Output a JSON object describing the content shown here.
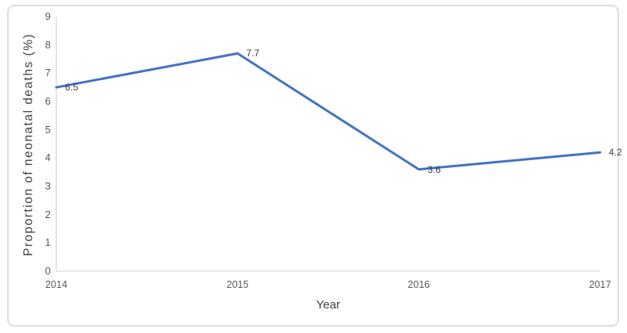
{
  "chart_data": {
    "type": "line",
    "title": "",
    "xlabel": "Year",
    "ylabel": "Proportion of neonatal deaths (%)",
    "categories": [
      "2014",
      "2015",
      "2016",
      "2017"
    ],
    "values": [
      6.5,
      7.7,
      3.6,
      4.2
    ],
    "data_labels": [
      "6.5",
      "7.7",
      "3.6",
      "4.2"
    ],
    "ylim": [
      0,
      9
    ],
    "yticks": [
      0,
      1,
      2,
      3,
      4,
      5,
      6,
      7,
      8,
      9
    ],
    "grid": false,
    "legend": false,
    "colors": {
      "line": "#4472C4",
      "axis": "#D9D9D9",
      "tick_text": "#595959",
      "title_text": "#404040",
      "data_label_text": "#404040",
      "card_border": "#DEDEDE",
      "background": "#FFFFFF"
    }
  }
}
